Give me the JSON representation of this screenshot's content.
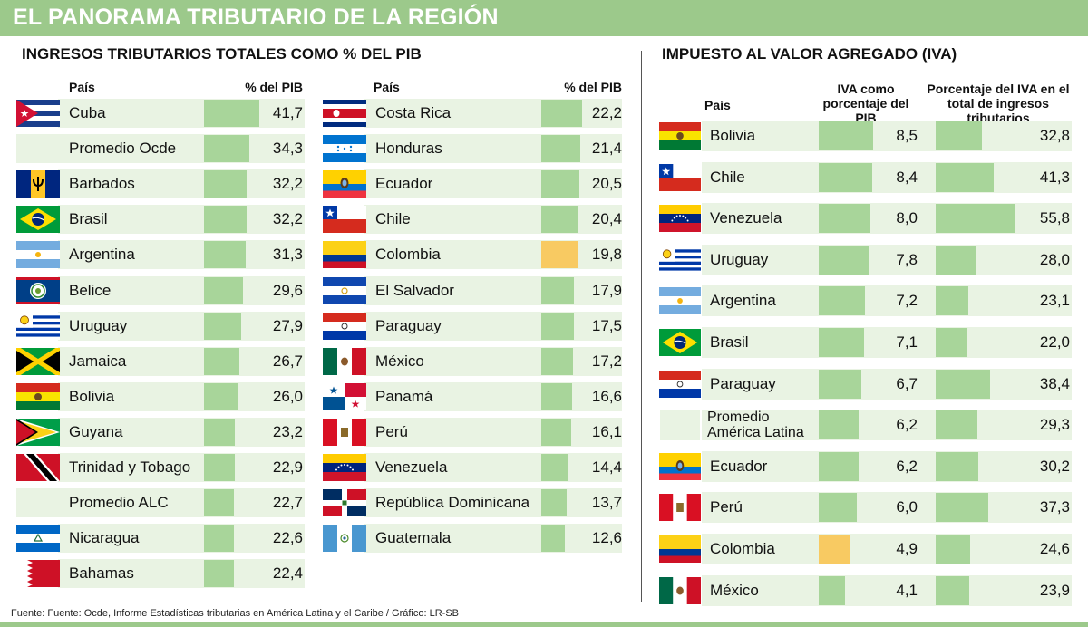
{
  "header": {
    "title": "EL PANORAMA TRIBUTARIO DE LA REGIÓN"
  },
  "footer": {
    "source": "Fuente:  Fuente: Ocde, Informe Estadísticas tributarias en América Latina y el Caribe   / Gráfico: LR-SB"
  },
  "chart_data": [
    {
      "type": "bar",
      "title": "INGRESOS TRIBUTARIOS TOTALES COMO % DEL PIB",
      "column_headers": {
        "country": "País",
        "value": "% del PIB"
      },
      "highlight_color": "#f8ca62",
      "bar_color": "#a8d59a",
      "xlim": [
        0,
        41.7
      ],
      "rows": [
        {
          "country": "Cuba",
          "value": "41,7",
          "v": 41.7,
          "flag": "cuba-flag-icon"
        },
        {
          "country": "Promedio Ocde",
          "value": "34,3",
          "v": 34.3,
          "flag": ""
        },
        {
          "country": "Barbados",
          "value": "32,2",
          "v": 32.2,
          "flag": "barbados-flag-icon"
        },
        {
          "country": "Brasil",
          "value": "32,2",
          "v": 32.2,
          "flag": "brazil-flag-icon"
        },
        {
          "country": "Argentina",
          "value": "31,3",
          "v": 31.3,
          "flag": "argentina-flag-icon"
        },
        {
          "country": "Belice",
          "value": "29,6",
          "v": 29.6,
          "flag": "belize-flag-icon"
        },
        {
          "country": "Uruguay",
          "value": "27,9",
          "v": 27.9,
          "flag": "uruguay-flag-icon"
        },
        {
          "country": "Jamaica",
          "value": "26,7",
          "v": 26.7,
          "flag": "jamaica-flag-icon"
        },
        {
          "country": "Bolivia",
          "value": "26,0",
          "v": 26.0,
          "flag": "bolivia-flag-icon"
        },
        {
          "country": "Guyana",
          "value": "23,2",
          "v": 23.2,
          "flag": "guyana-flag-icon"
        },
        {
          "country": "Trinidad y Tobago",
          "value": "22,9",
          "v": 22.9,
          "flag": "trinidad-flag-icon"
        },
        {
          "country": "Promedio ALC",
          "value": "22,7",
          "v": 22.7,
          "flag": ""
        },
        {
          "country": "Nicaragua",
          "value": "22,6",
          "v": 22.6,
          "flag": "nicaragua-flag-icon"
        },
        {
          "country": "Bahamas",
          "value": "22,4",
          "v": 22.4,
          "flag": "bahrain-flag-icon"
        },
        {
          "country": "Costa Rica",
          "value": "22,2",
          "v": 22.2,
          "flag": "costa-rica-flag-icon"
        },
        {
          "country": "Honduras",
          "value": "21,4",
          "v": 21.4,
          "flag": "honduras-flag-icon"
        },
        {
          "country": "Ecuador",
          "value": "20,5",
          "v": 20.5,
          "flag": "ecuador-flag-icon"
        },
        {
          "country": "Chile",
          "value": "20,4",
          "v": 20.4,
          "flag": "chile-flag-icon"
        },
        {
          "country": "Colombia",
          "value": "19,8",
          "v": 19.8,
          "flag": "colombia-flag-icon",
          "highlight": true
        },
        {
          "country": "El Salvador",
          "value": "17,9",
          "v": 17.9,
          "flag": "el-salvador-flag-icon"
        },
        {
          "country": "Paraguay",
          "value": "17,5",
          "v": 17.5,
          "flag": "paraguay-flag-icon"
        },
        {
          "country": "México",
          "value": "17,2",
          "v": 17.2,
          "flag": "mexico-flag-icon"
        },
        {
          "country": "Panamá",
          "value": "16,6",
          "v": 16.6,
          "flag": "panama-flag-icon"
        },
        {
          "country": "Perú",
          "value": "16,1",
          "v": 16.1,
          "flag": "peru-flag-icon"
        },
        {
          "country": "Venezuela",
          "value": "14,4",
          "v": 14.4,
          "flag": "venezuela-flag-icon"
        },
        {
          "country": "República Dominicana",
          "value": "13,7",
          "v": 13.7,
          "flag": "dominican-republic-flag-icon"
        },
        {
          "country": "Guatemala",
          "value": "12,6",
          "v": 12.6,
          "flag": "guatemala-flag-icon"
        }
      ]
    },
    {
      "type": "bar",
      "title": "IMPUESTO AL VALOR AGREGADO (IVA)",
      "column_headers": {
        "country": "País",
        "iva_pib": "IVA como porcentaje del PIB",
        "iva_total": "Porcentaje del IVA en el total de ingresos tributarios"
      },
      "xlim_iva_pib": [
        0,
        8.5
      ],
      "xlim_iva_total": [
        0,
        55.8
      ],
      "rows": [
        {
          "country": "Bolivia",
          "iva_pib": "8,5",
          "a": 8.5,
          "iva_total": "32,8",
          "b": 32.8,
          "flag": "bolivia-flag-icon"
        },
        {
          "country": "Chile",
          "iva_pib": "8,4",
          "a": 8.4,
          "iva_total": "41,3",
          "b": 41.3,
          "flag": "chile-flag-icon"
        },
        {
          "country": "Venezuela",
          "iva_pib": "8,0",
          "a": 8.0,
          "iva_total": "55,8",
          "b": 55.8,
          "flag": "venezuela-flag-icon"
        },
        {
          "country": "Uruguay",
          "iva_pib": "7,8",
          "a": 7.8,
          "iva_total": "28,0",
          "b": 28.0,
          "flag": "uruguay-flag-icon"
        },
        {
          "country": "Argentina",
          "iva_pib": "7,2",
          "a": 7.2,
          "iva_total": "23,1",
          "b": 23.1,
          "flag": "argentina-flag-icon"
        },
        {
          "country": "Brasil",
          "iva_pib": "7,1",
          "a": 7.1,
          "iva_total": "22,0",
          "b": 22.0,
          "flag": "brazil-flag-icon"
        },
        {
          "country": "Paraguay",
          "iva_pib": "6,7",
          "a": 6.7,
          "iva_total": "38,4",
          "b": 38.4,
          "flag": "paraguay-flag-icon"
        },
        {
          "country": "Promedio América Latina",
          "iva_pib": "6,2",
          "a": 6.2,
          "iva_total": "29,3",
          "b": 29.3,
          "flag": ""
        },
        {
          "country": "Ecuador",
          "iva_pib": "6,2",
          "a": 6.2,
          "iva_total": "30,2",
          "b": 30.2,
          "flag": "ecuador-flag-icon"
        },
        {
          "country": "Perú",
          "iva_pib": "6,0",
          "a": 6.0,
          "iva_total": "37,3",
          "b": 37.3,
          "flag": "peru-flag-icon"
        },
        {
          "country": "Colombia",
          "iva_pib": "4,9",
          "a": 4.9,
          "iva_total": "24,6",
          "b": 24.6,
          "flag": "colombia-flag-icon",
          "highlight": true
        },
        {
          "country": "México",
          "iva_pib": "4,1",
          "a": 4.1,
          "iva_total": "23,9",
          "b": 23.9,
          "flag": "mexico-flag-icon"
        }
      ]
    }
  ]
}
